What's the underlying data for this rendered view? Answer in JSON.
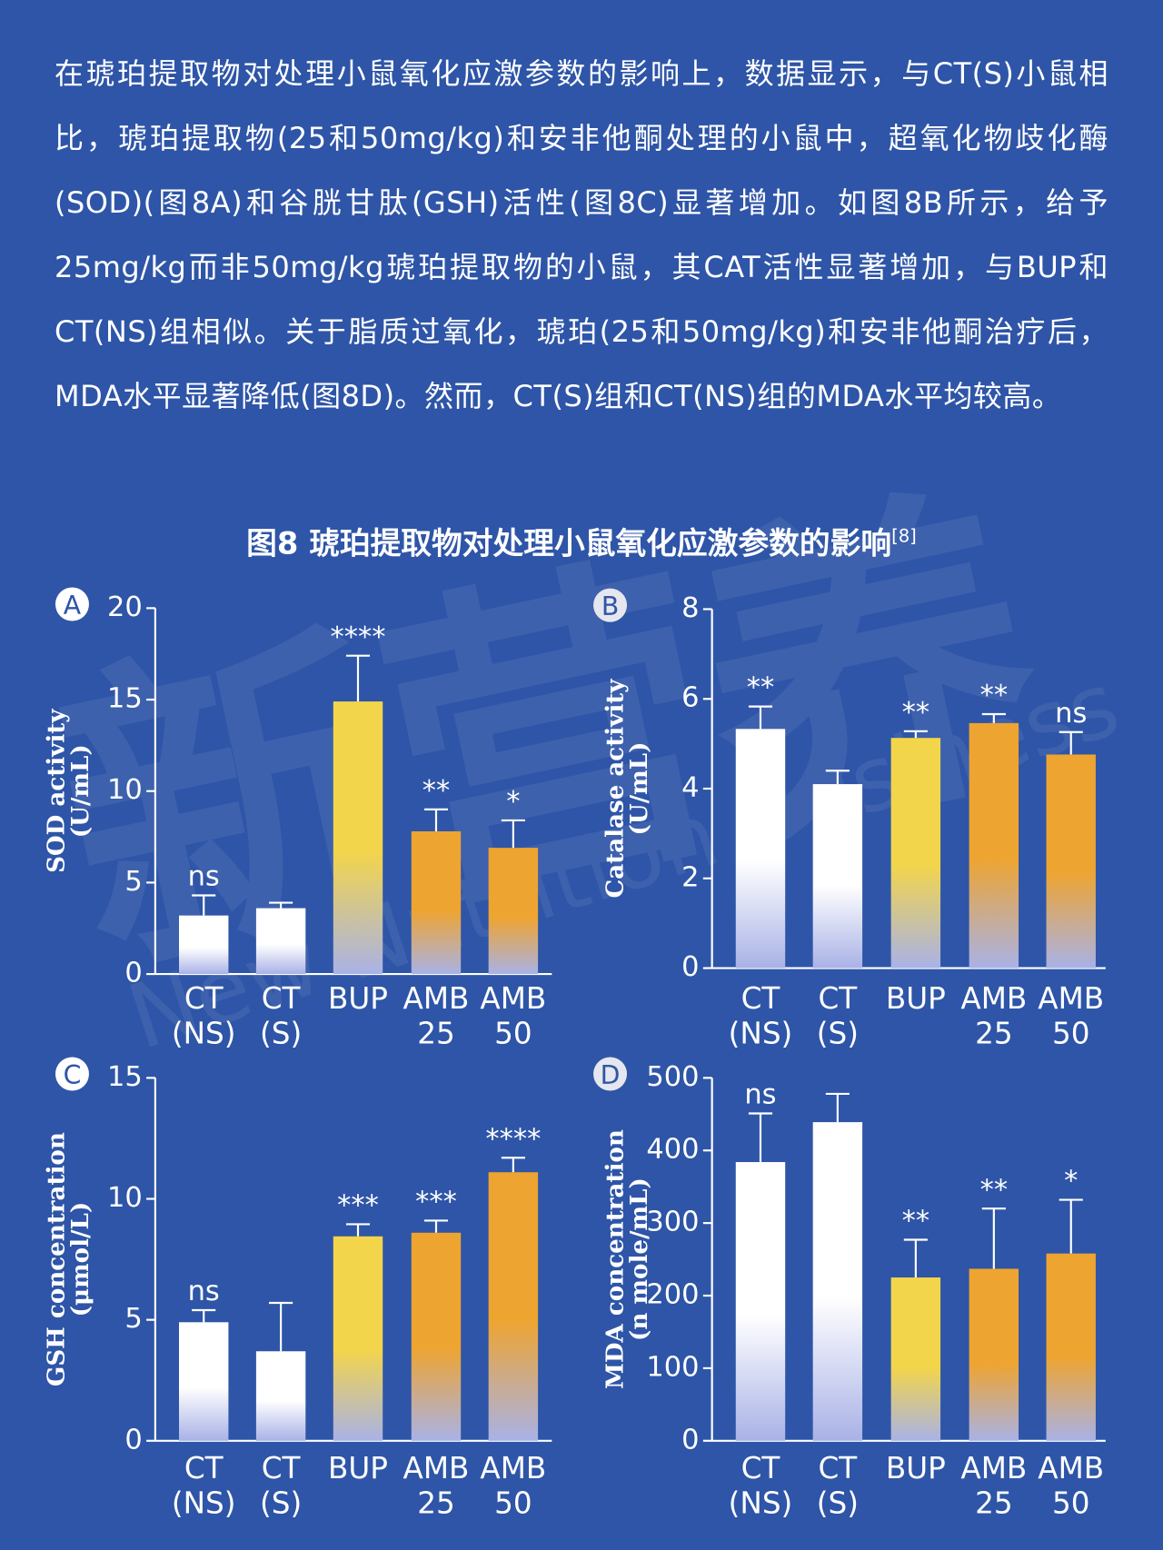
{
  "paragraph": "在琥珀提取物对处理小鼠氧化应激参数的影响上，数据显示，与CT(S)小鼠相比，琥珀提取物(25和50mg/kg)和安非他酮处理的小鼠中，超氧化物歧化酶(SOD)(图8A)和谷胱甘肽(GSH)活性(图8C)显著增加。如图8B所示，给予25mg/kg而非50mg/kg琥珀提取物的小鼠，其CAT活性显著增加，与BUP和CT(NS)组相似。关于脂质过氧化，琥珀(25和50mg/kg)和安非他酮治疗后，MDA水平显著降低(图8D)。然而，CT(S)组和CT(NS)组的MDA水平均较高。",
  "figure_title": "图8 琥珀提取物对处理小鼠氧化应激参数的影响",
  "figure_ref": "[8]",
  "watermark": [
    "新营养",
    "New Nutrition Business"
  ],
  "chart_data": [
    {
      "type": "bar",
      "panel": "A",
      "ylabel": [
        "SOD activity",
        "(U/mL)"
      ],
      "categories": [
        "CT (NS)",
        "CT (S)",
        "BUP",
        "AMB 25",
        "AMB 50"
      ],
      "values": [
        3.2,
        3.6,
        14.9,
        7.8,
        6.9
      ],
      "errors": [
        1.1,
        0.3,
        2.5,
        1.2,
        1.5
      ],
      "annotations": [
        "ns",
        null,
        "****",
        "**",
        "*"
      ],
      "colors": [
        "#ffffff",
        "#ffffff",
        "#f3d54b",
        "#eea430",
        "#eea430"
      ],
      "ylim": [
        0,
        20
      ],
      "yticks": [
        0,
        5,
        10,
        15,
        20
      ]
    },
    {
      "type": "bar",
      "panel": "B",
      "ylabel": [
        "Catalase activity",
        "(U/mL)"
      ],
      "categories": [
        "CT (NS)",
        "CT (S)",
        "BUP",
        "AMB 25",
        "AMB 50"
      ],
      "values": [
        5.33,
        4.1,
        5.13,
        5.46,
        4.76
      ],
      "errors": [
        0.5,
        0.3,
        0.15,
        0.2,
        0.5
      ],
      "annotations": [
        "**",
        null,
        "**",
        "**",
        "ns"
      ],
      "colors": [
        "#ffffff",
        "#ffffff",
        "#f3d54b",
        "#eea430",
        "#eea430"
      ],
      "ylim": [
        0,
        8
      ],
      "yticks": [
        0,
        2,
        4,
        6,
        8
      ]
    },
    {
      "type": "bar",
      "panel": "C",
      "ylabel": [
        "GSH concentration",
        "(μmol/L)"
      ],
      "categories": [
        "CT (NS)",
        "CT (S)",
        "BUP",
        "AMB 25",
        "AMB 50"
      ],
      "values": [
        4.9,
        3.7,
        8.45,
        8.6,
        11.1
      ],
      "errors": [
        0.5,
        2.0,
        0.5,
        0.5,
        0.6
      ],
      "annotations": [
        "ns",
        null,
        "***",
        "***",
        "****"
      ],
      "colors": [
        "#ffffff",
        "#ffffff",
        "#f3d54b",
        "#eea430",
        "#eea430"
      ],
      "ylim": [
        0,
        15
      ],
      "yticks": [
        0,
        5,
        10,
        15
      ]
    },
    {
      "type": "bar",
      "panel": "D",
      "ylabel": [
        "MDA concentration",
        "(n mole/mL)"
      ],
      "categories": [
        "CT (NS)",
        "CT (S)",
        "BUP",
        "AMB 25",
        "AMB 50"
      ],
      "values": [
        384,
        439,
        225,
        237,
        258
      ],
      "errors": [
        67,
        39,
        52,
        83,
        74
      ],
      "annotations": [
        "ns",
        null,
        "**",
        "**",
        "*"
      ],
      "colors": [
        "#ffffff",
        "#ffffff",
        "#f3d54b",
        "#eea430",
        "#eea430"
      ],
      "ylim": [
        0,
        500
      ],
      "yticks": [
        0,
        100,
        200,
        300,
        400,
        500
      ]
    }
  ]
}
